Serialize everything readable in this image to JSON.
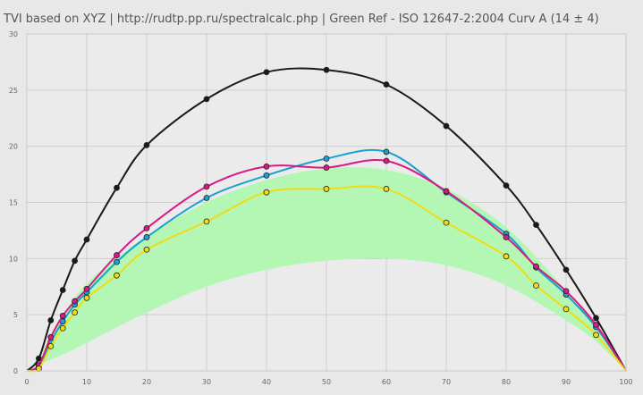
{
  "chart_data": {
    "type": "line",
    "title": "TVI based on XYZ  |  http://rudtp.pp.ru/spectralcalc.php  |  Green Ref - ISO 12647-2:2004 Curv A (14 ± 4)",
    "xlabel": "",
    "ylabel": "",
    "xlim": [
      0,
      100
    ],
    "ylim": [
      0,
      30
    ],
    "x_ticks": [
      0,
      10,
      20,
      30,
      40,
      50,
      60,
      70,
      80,
      90,
      100
    ],
    "y_ticks": [
      0,
      5,
      10,
      15,
      20,
      25,
      30
    ],
    "grid": true,
    "legend": "none",
    "reference_band": {
      "color": "#b4f7b4",
      "x": [
        0,
        2,
        5,
        10,
        20,
        30,
        40,
        50,
        60,
        70,
        80,
        90,
        95,
        100
      ],
      "upper": [
        0,
        1.3,
        4.0,
        7.8,
        12.0,
        15.0,
        17.0,
        18.0,
        17.9,
        16.2,
        12.8,
        7.2,
        4.2,
        0
      ],
      "lower": [
        0,
        0.6,
        1.2,
        2.5,
        5.2,
        7.5,
        9.0,
        9.8,
        10.0,
        9.4,
        7.6,
        4.5,
        2.6,
        0
      ]
    },
    "series": [
      {
        "color": "#1a1a1a",
        "x": [
          0,
          2,
          4,
          6,
          8,
          10,
          15,
          20,
          30,
          40,
          50,
          60,
          70,
          80,
          85,
          90,
          95,
          100
        ],
        "y": [
          0,
          1.1,
          4.5,
          7.2,
          9.8,
          11.7,
          16.3,
          20.1,
          24.2,
          26.6,
          26.8,
          25.5,
          21.8,
          16.5,
          13.0,
          9.0,
          4.7,
          0
        ]
      },
      {
        "color": "#1ba0d0",
        "x": [
          0,
          2,
          4,
          6,
          8,
          10,
          15,
          20,
          30,
          40,
          50,
          60,
          70,
          80,
          85,
          90,
          95,
          100
        ],
        "y": [
          0,
          0.4,
          2.6,
          4.4,
          5.9,
          7.0,
          9.7,
          11.9,
          15.4,
          17.4,
          18.9,
          19.5,
          15.9,
          12.2,
          9.2,
          6.8,
          3.9,
          0
        ]
      },
      {
        "color": "#d81a84",
        "x": [
          0,
          2,
          4,
          6,
          8,
          10,
          15,
          20,
          30,
          40,
          50,
          60,
          70,
          80,
          85,
          90,
          95,
          100
        ],
        "y": [
          0,
          0.5,
          3.0,
          4.9,
          6.2,
          7.3,
          10.3,
          12.7,
          16.4,
          18.2,
          18.1,
          18.7,
          16.0,
          11.9,
          9.3,
          7.1,
          4.1,
          0
        ]
      },
      {
        "color": "#f0dc14",
        "x": [
          0,
          2,
          4,
          6,
          8,
          10,
          15,
          20,
          30,
          40,
          50,
          60,
          70,
          80,
          85,
          90,
          95,
          100
        ],
        "y": [
          0,
          0.2,
          2.2,
          3.8,
          5.2,
          6.5,
          8.5,
          10.8,
          13.3,
          15.9,
          16.2,
          16.2,
          13.2,
          10.2,
          7.6,
          5.5,
          3.2,
          0
        ]
      }
    ]
  }
}
